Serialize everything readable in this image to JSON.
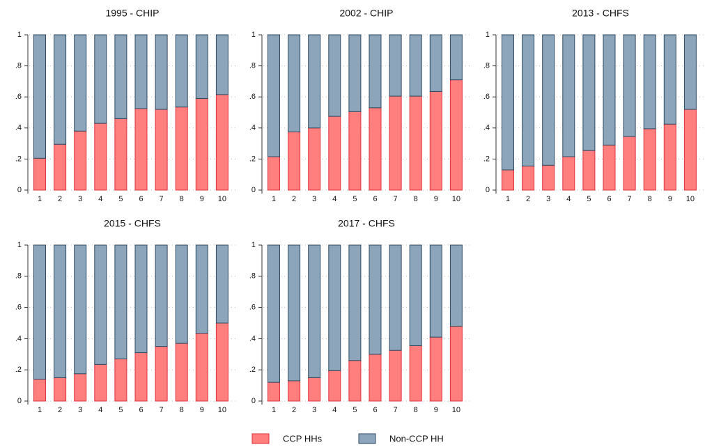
{
  "chart_data": [
    {
      "type": "stacked-bar",
      "title": "1995 - CHIP",
      "categories": [
        "1",
        "2",
        "3",
        "4",
        "5",
        "6",
        "7",
        "8",
        "9",
        "10"
      ],
      "series": [
        {
          "name": "CCP HHs",
          "color": "#ff7f7f",
          "values": [
            0.205,
            0.295,
            0.38,
            0.43,
            0.46,
            0.525,
            0.52,
            0.535,
            0.59,
            0.615
          ]
        },
        {
          "name": "Non-CCP HH",
          "color": "#8ca5ba",
          "values": [
            0.795,
            0.705,
            0.62,
            0.57,
            0.54,
            0.475,
            0.48,
            0.465,
            0.41,
            0.385
          ]
        }
      ],
      "ylim": [
        0,
        1
      ],
      "yticks": [
        0,
        {
          "value": 0.2,
          "label": ".2"
        },
        {
          "value": 0.4,
          "label": ".4"
        },
        {
          "value": 0.6,
          "label": ".6"
        },
        {
          "value": 0.8,
          "label": ".8"
        },
        1
      ],
      "grid": true
    },
    {
      "type": "stacked-bar",
      "title": "2002 - CHIP",
      "categories": [
        "1",
        "2",
        "3",
        "4",
        "5",
        "6",
        "7",
        "8",
        "9",
        "10"
      ],
      "series": [
        {
          "name": "CCP HHs",
          "color": "#ff7f7f",
          "values": [
            0.215,
            0.375,
            0.4,
            0.475,
            0.505,
            0.53,
            0.605,
            0.605,
            0.635,
            0.71
          ]
        },
        {
          "name": "Non-CCP HH",
          "color": "#8ca5ba",
          "values": [
            0.785,
            0.625,
            0.6,
            0.525,
            0.495,
            0.47,
            0.395,
            0.395,
            0.365,
            0.29
          ]
        }
      ],
      "ylim": [
        0,
        1
      ],
      "yticks": [
        0,
        {
          "value": 0.2,
          "label": ".2"
        },
        {
          "value": 0.4,
          "label": ".4"
        },
        {
          "value": 0.6,
          "label": ".6"
        },
        {
          "value": 0.8,
          "label": ".8"
        },
        1
      ],
      "grid": true
    },
    {
      "type": "stacked-bar",
      "title": "2013 - CHFS",
      "categories": [
        "1",
        "2",
        "3",
        "4",
        "5",
        "6",
        "7",
        "8",
        "9",
        "10"
      ],
      "series": [
        {
          "name": "CCP HHs",
          "color": "#ff7f7f",
          "values": [
            0.13,
            0.155,
            0.16,
            0.215,
            0.255,
            0.29,
            0.345,
            0.395,
            0.425,
            0.52
          ]
        },
        {
          "name": "Non-CCP HH",
          "color": "#8ca5ba",
          "values": [
            0.87,
            0.845,
            0.84,
            0.785,
            0.745,
            0.71,
            0.655,
            0.605,
            0.575,
            0.48
          ]
        }
      ],
      "ylim": [
        0,
        1
      ],
      "yticks": [
        0,
        {
          "value": 0.2,
          "label": ".2"
        },
        {
          "value": 0.4,
          "label": ".4"
        },
        {
          "value": 0.6,
          "label": ".6"
        },
        {
          "value": 0.8,
          "label": ".8"
        },
        1
      ],
      "grid": true
    },
    {
      "type": "stacked-bar",
      "title": "2015 - CHFS",
      "categories": [
        "1",
        "2",
        "3",
        "4",
        "5",
        "6",
        "7",
        "8",
        "9",
        "10"
      ],
      "series": [
        {
          "name": "CCP HHs",
          "color": "#ff7f7f",
          "values": [
            0.14,
            0.15,
            0.175,
            0.235,
            0.27,
            0.31,
            0.35,
            0.37,
            0.435,
            0.5
          ]
        },
        {
          "name": "Non-CCP HH",
          "color": "#8ca5ba",
          "values": [
            0.86,
            0.85,
            0.825,
            0.765,
            0.73,
            0.69,
            0.65,
            0.63,
            0.565,
            0.5
          ]
        }
      ],
      "ylim": [
        0,
        1
      ],
      "yticks": [
        0,
        {
          "value": 0.2,
          "label": ".2"
        },
        {
          "value": 0.4,
          "label": ".4"
        },
        {
          "value": 0.6,
          "label": ".6"
        },
        {
          "value": 0.8,
          "label": ".8"
        },
        1
      ],
      "grid": true
    },
    {
      "type": "stacked-bar",
      "title": "2017 - CHFS",
      "categories": [
        "1",
        "2",
        "3",
        "4",
        "5",
        "6",
        "7",
        "8",
        "9",
        "10"
      ],
      "series": [
        {
          "name": "CCP HHs",
          "color": "#ff7f7f",
          "values": [
            0.12,
            0.13,
            0.15,
            0.195,
            0.26,
            0.3,
            0.325,
            0.355,
            0.41,
            0.48
          ]
        },
        {
          "name": "Non-CCP HH",
          "color": "#8ca5ba",
          "values": [
            0.88,
            0.87,
            0.85,
            0.805,
            0.74,
            0.7,
            0.675,
            0.645,
            0.59,
            0.52
          ]
        }
      ],
      "ylim": [
        0,
        1
      ],
      "yticks": [
        0,
        {
          "value": 0.2,
          "label": ".2"
        },
        {
          "value": 0.4,
          "label": ".4"
        },
        {
          "value": 0.6,
          "label": ".6"
        },
        {
          "value": 0.8,
          "label": ".8"
        },
        1
      ],
      "grid": true
    }
  ]
}
